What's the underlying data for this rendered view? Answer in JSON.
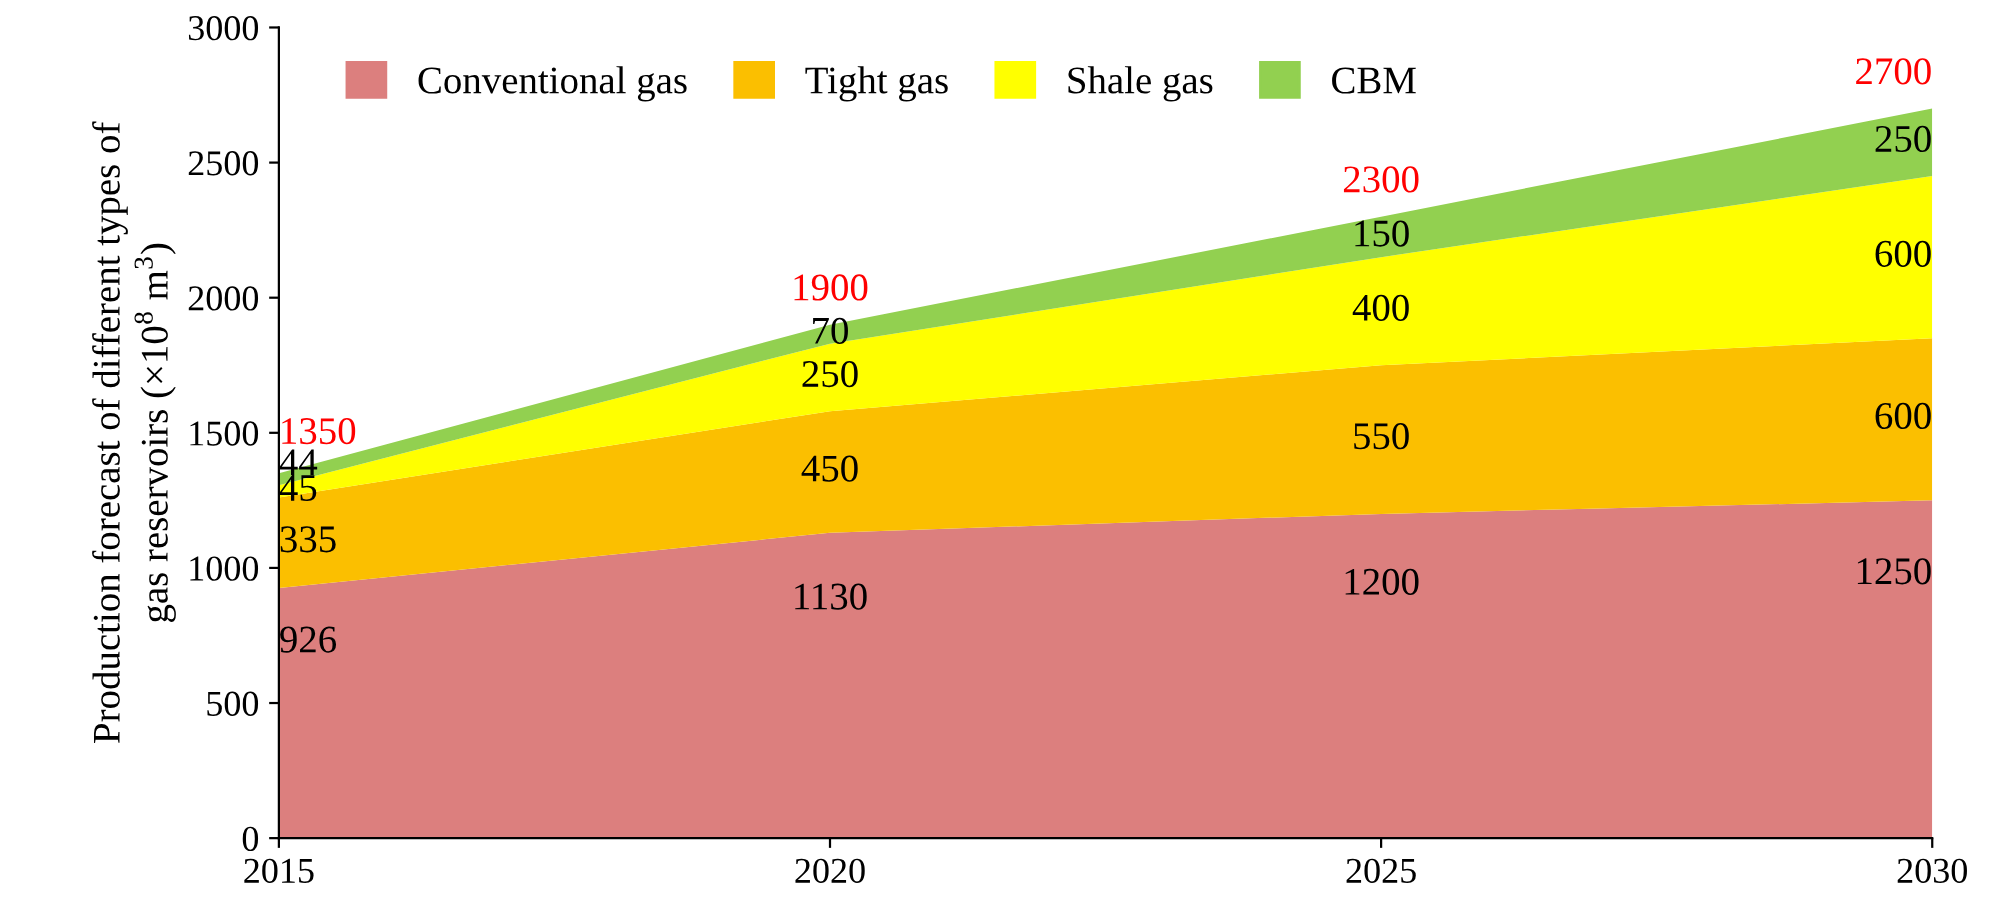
{
  "chart_data": {
    "type": "area",
    "stacked": true,
    "ylabel": "Production forecast of different types of\ngas reservoirs (×10$^{8}$ m$^{3}$)",
    "x": [
      2015,
      2020,
      2025,
      2030
    ],
    "series": [
      {
        "name": "Conventional gas",
        "color": "#dc7f7e",
        "values": [
          926,
          1130,
          1200,
          1250
        ]
      },
      {
        "name": "Tight gas",
        "color": "#fbbf00",
        "values": [
          335,
          450,
          550,
          600
        ]
      },
      {
        "name": "Shale gas",
        "color": "#ffff00",
        "values": [
          45,
          250,
          400,
          600
        ]
      },
      {
        "name": "CBM",
        "color": "#92d050",
        "values": [
          44,
          70,
          150,
          250
        ]
      }
    ],
    "totals": [
      "1350",
      "1900",
      "2300",
      "2700"
    ],
    "data_labels": true,
    "xlim": [
      2015,
      2030
    ],
    "xticks": [
      2015,
      2020,
      2025,
      2030
    ],
    "ylim": [
      0,
      3000
    ],
    "yticks": [
      0,
      500,
      1000,
      1500,
      2000,
      2500,
      3000
    ],
    "grid": false,
    "legend": "top left"
  }
}
